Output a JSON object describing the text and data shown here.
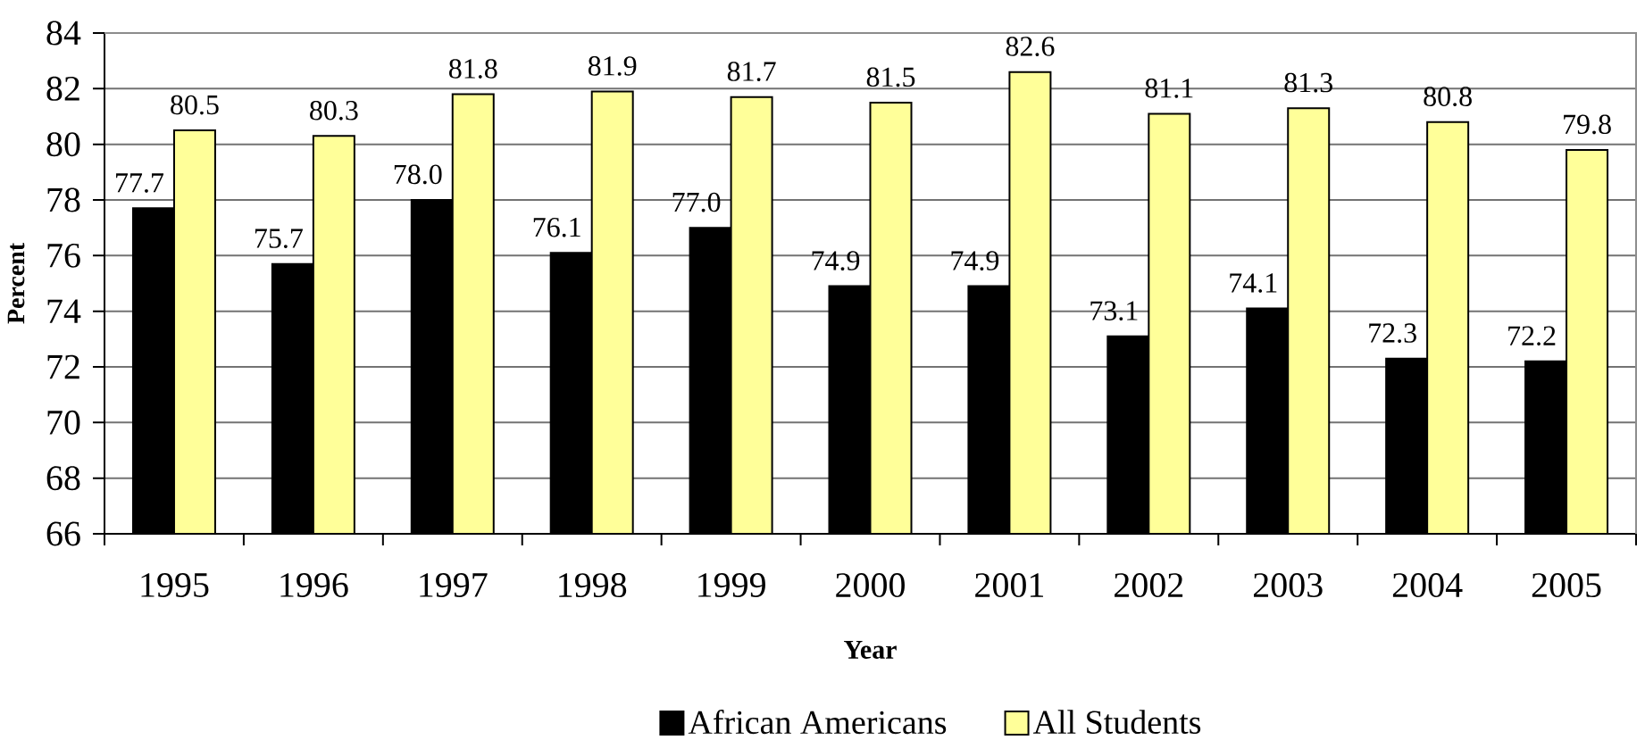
{
  "chart_data": {
    "type": "bar",
    "xlabel": "Year",
    "ylabel": "Percent",
    "categories": [
      "1995",
      "1996",
      "1997",
      "1998",
      "1999",
      "2000",
      "2001",
      "2002",
      "2003",
      "2004",
      "2005"
    ],
    "series": [
      {
        "name": "African Americans",
        "color": "#000000",
        "values": [
          77.7,
          75.7,
          78.0,
          76.1,
          77.0,
          74.9,
          74.9,
          73.1,
          74.1,
          72.3,
          72.2
        ],
        "value_labels": [
          "77.7",
          "75.7",
          "78.0",
          "76.1",
          "77.0",
          "74.9",
          "74.9",
          "73.1",
          "74.1",
          "72.3",
          "72.2"
        ]
      },
      {
        "name": "All Students",
        "color": "#ffff99",
        "values": [
          80.5,
          80.3,
          81.8,
          81.9,
          81.7,
          81.5,
          82.6,
          81.1,
          81.3,
          80.8,
          79.8
        ],
        "value_labels": [
          "80.5",
          "80.3",
          "81.8",
          "81.9",
          "81.7",
          "81.5",
          "82.6",
          "81.1",
          "81.3",
          "80.8",
          "79.8"
        ]
      }
    ],
    "ylim": [
      66,
      84
    ],
    "yticks": [
      66,
      68,
      70,
      72,
      74,
      76,
      78,
      80,
      82,
      84
    ],
    "grid": "y",
    "legend": "bottom"
  }
}
